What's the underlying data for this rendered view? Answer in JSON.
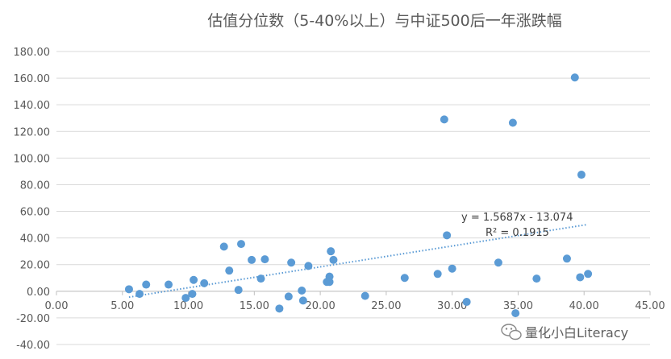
{
  "chart_data": {
    "type": "scatter",
    "title": "估值分位数（5-40%以上）与中证500后一年涨跌幅",
    "xlim": [
      0,
      45
    ],
    "ylim": [
      -40,
      180
    ],
    "x_ticks": [
      "0.00",
      "5.00",
      "10.00",
      "15.00",
      "20.00",
      "25.00",
      "30.00",
      "35.00",
      "40.00",
      "45.00"
    ],
    "y_ticks": [
      "180.00",
      "160.00",
      "140.00",
      "120.00",
      "100.00",
      "80.00",
      "60.00",
      "40.00",
      "20.00",
      "0.00",
      "-20.00",
      "-40.00"
    ],
    "grid": "horizontal",
    "point_color": "#5b9bd5",
    "trendline": {
      "slope": 1.5687,
      "intercept": -13.074,
      "x_range": [
        5.5,
        40.2
      ],
      "equation": "y = 1.5687x - 13.074",
      "r2_label": "R² = 0.1915"
    },
    "points": [
      {
        "x": 5.5,
        "y": 1.5
      },
      {
        "x": 6.3,
        "y": -2
      },
      {
        "x": 6.8,
        "y": 5
      },
      {
        "x": 8.5,
        "y": 5
      },
      {
        "x": 9.8,
        "y": -5
      },
      {
        "x": 10.3,
        "y": -2
      },
      {
        "x": 10.4,
        "y": 8.5
      },
      {
        "x": 11.2,
        "y": 6
      },
      {
        "x": 12.7,
        "y": 33.5
      },
      {
        "x": 13.1,
        "y": 15.5
      },
      {
        "x": 13.8,
        "y": 1
      },
      {
        "x": 14.0,
        "y": 35.5
      },
      {
        "x": 14.8,
        "y": 23.5
      },
      {
        "x": 15.5,
        "y": 9.5
      },
      {
        "x": 15.8,
        "y": 24
      },
      {
        "x": 16.9,
        "y": -13
      },
      {
        "x": 17.6,
        "y": -4
      },
      {
        "x": 17.8,
        "y": 21.5
      },
      {
        "x": 18.6,
        "y": 0.5
      },
      {
        "x": 18.7,
        "y": -7
      },
      {
        "x": 19.1,
        "y": 19
      },
      {
        "x": 20.5,
        "y": 7
      },
      {
        "x": 20.7,
        "y": 7
      },
      {
        "x": 20.7,
        "y": 11
      },
      {
        "x": 20.8,
        "y": 30
      },
      {
        "x": 21.0,
        "y": 23.5
      },
      {
        "x": 23.4,
        "y": -3.5
      },
      {
        "x": 26.4,
        "y": 10
      },
      {
        "x": 28.9,
        "y": 13
      },
      {
        "x": 29.4,
        "y": 129
      },
      {
        "x": 29.6,
        "y": 42
      },
      {
        "x": 30.0,
        "y": 17
      },
      {
        "x": 31.1,
        "y": -8
      },
      {
        "x": 33.5,
        "y": 21.5
      },
      {
        "x": 34.6,
        "y": 126.5
      },
      {
        "x": 34.8,
        "y": -16.5
      },
      {
        "x": 36.4,
        "y": 9.5
      },
      {
        "x": 38.7,
        "y": 24.5
      },
      {
        "x": 39.3,
        "y": 160.5
      },
      {
        "x": 39.7,
        "y": 10.5
      },
      {
        "x": 39.8,
        "y": 87.5
      },
      {
        "x": 40.3,
        "y": 13
      }
    ]
  },
  "watermark": {
    "icon": "wechat-icon",
    "text": "量化小白Literacy"
  }
}
